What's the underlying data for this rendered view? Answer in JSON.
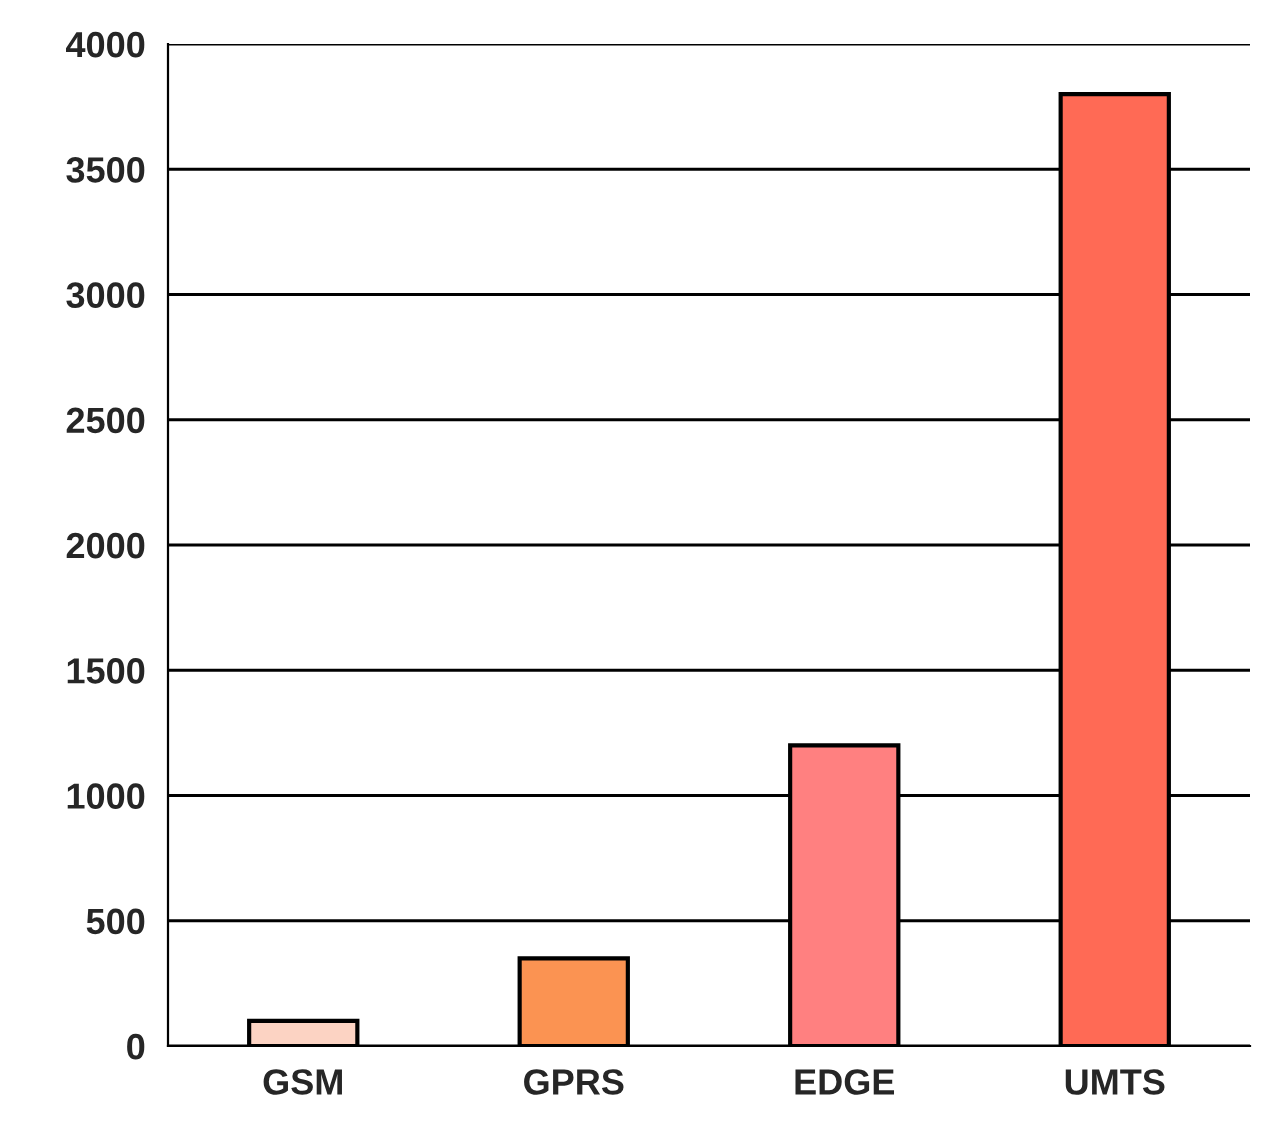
{
  "chart_data": {
    "type": "bar",
    "categories": [
      "GSM",
      "GPRS",
      "EDGE",
      "UMTS"
    ],
    "values": [
      100,
      350,
      1200,
      3800
    ],
    "colors": [
      "#fcd3c3",
      "#fb9352",
      "#ff8080",
      "#ff6a55"
    ],
    "ylim": [
      0,
      4000
    ],
    "yticks": [
      0,
      500,
      1000,
      1500,
      2000,
      2500,
      3000,
      3500,
      4000
    ],
    "grid": "y"
  }
}
